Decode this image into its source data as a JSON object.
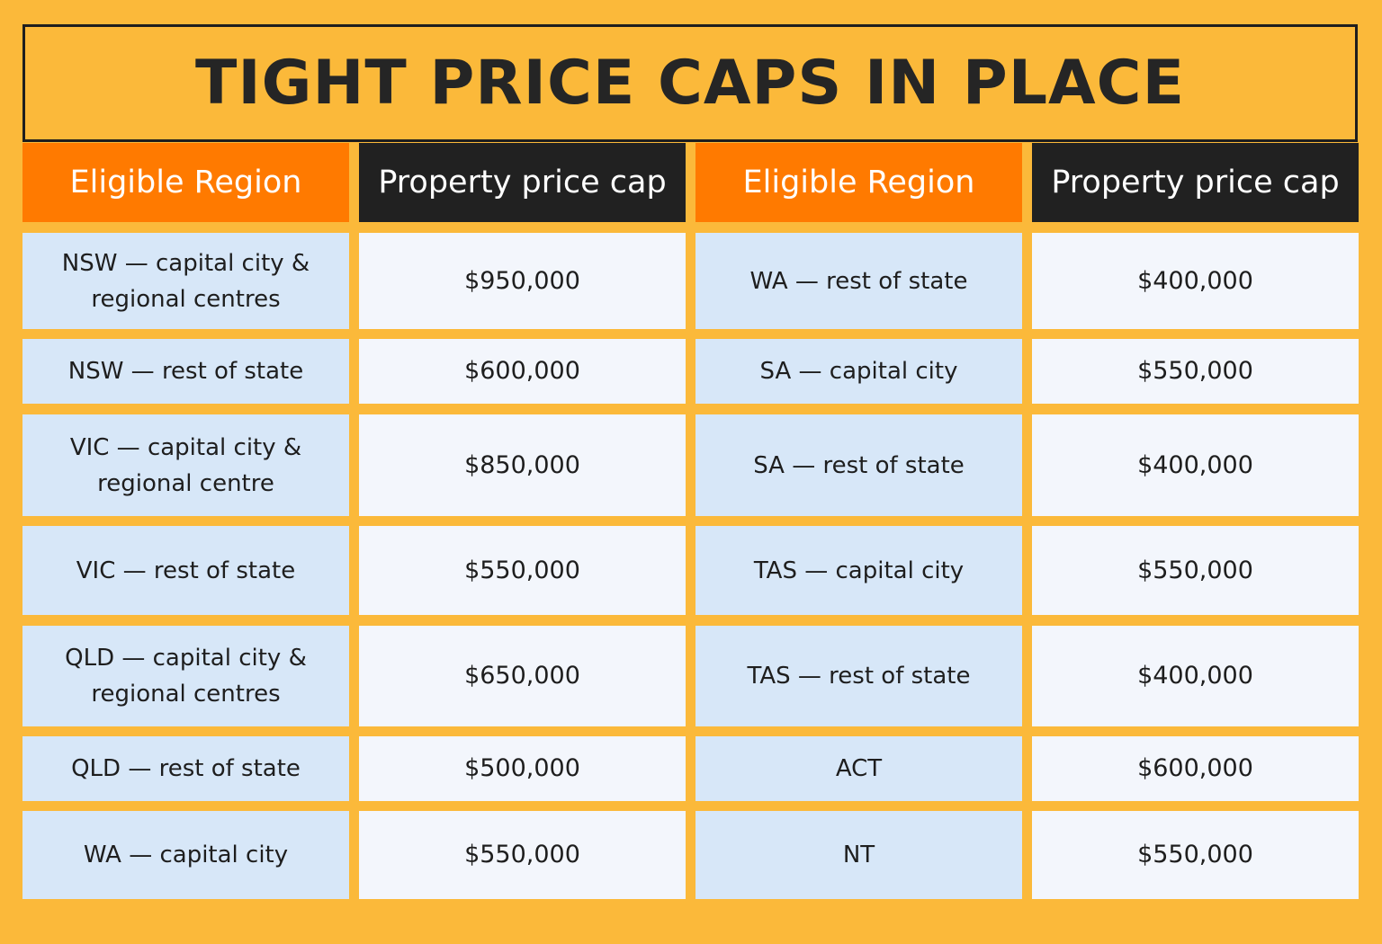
{
  "title": "TIGHT PRICE CAPS IN PLACE",
  "headers": [
    "Eligible Region",
    "Property price cap",
    "Eligible Region",
    "Property price cap"
  ],
  "rows": [
    {
      "region_left": "NSW — capital city & regional centres",
      "price_left": "$950,000",
      "region_right": "WA — rest of state",
      "price_right": "$400,000"
    },
    {
      "region_left": "NSW — rest of state",
      "price_left": "$600,000",
      "region_right": "SA — capital city",
      "price_right": "$550,000"
    },
    {
      "region_left": "VIC — capital city & regional centre",
      "price_left": "$850,000",
      "region_right": "SA — rest of state",
      "price_right": "$400,000"
    },
    {
      "region_left": "VIC — rest of state",
      "price_left": "$550,000",
      "region_right": "TAS — capital city",
      "price_right": "$550,000"
    },
    {
      "region_left": "QLD — capital city & regional centres",
      "price_left": "$650,000",
      "region_right": "TAS — rest of state",
      "price_right": "$400,000"
    },
    {
      "region_left": "QLD — rest of state",
      "price_left": "$500,000",
      "region_right": "ACT",
      "price_right": "$600,000"
    },
    {
      "region_left": "WA — capital city",
      "price_left": "$550,000",
      "region_right": "NT",
      "price_right": "$550,000"
    }
  ],
  "colors": {
    "background": "#FBB93A",
    "header_orange": "#FF7A00",
    "header_dark": "#212121",
    "region_cell": "#D7E7F8",
    "price_cell": "#F3F6FC",
    "text": "#1E1E1E"
  }
}
